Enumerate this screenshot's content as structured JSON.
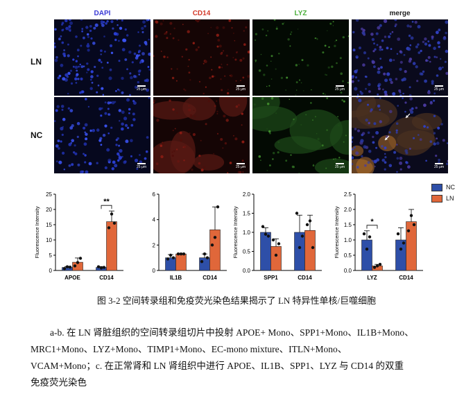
{
  "figure": {
    "channels": [
      "DAPI",
      "CD14",
      "LYZ",
      "merge"
    ],
    "channel_colors": [
      "#3b3bd6",
      "#d43a2a",
      "#4caf3c",
      "#222222"
    ],
    "rows": [
      "LN",
      "NC"
    ],
    "scale_bar": "25 μm"
  },
  "legend": {
    "items": [
      {
        "label": "NC",
        "color": "#2e4fa8"
      },
      {
        "label": "LN",
        "color": "#e0673a"
      }
    ]
  },
  "chart_data": [
    {
      "type": "bar",
      "categories": [
        "APOE",
        "CD14"
      ],
      "series": [
        {
          "name": "NC",
          "values": [
            1.0,
            1.0
          ]
        },
        {
          "name": "LN",
          "values": [
            2.7,
            16.0
          ]
        }
      ],
      "error": [
        [
          0.3,
          0.3
        ],
        [
          1.4,
          3.5
        ]
      ],
      "points": [
        [
          [
            0.6,
            1.2,
            1.1
          ],
          [
            1.2,
            0.8,
            1.0
          ]
        ],
        [
          [
            1.5,
            2.6,
            4.0
          ],
          [
            14.0,
            18.5,
            15.5
          ]
        ]
      ],
      "ylabel": "Fluorescence Intensity",
      "ylim": [
        0,
        25
      ],
      "yticks": [
        "0",
        "5",
        "10",
        "15",
        "20",
        "25"
      ],
      "significance": [
        {
          "category": "CD14",
          "text": "**"
        }
      ]
    },
    {
      "type": "bar",
      "categories": [
        "IL1B",
        "CD14"
      ],
      "series": [
        {
          "name": "NC",
          "values": [
            1.0,
            1.0
          ]
        },
        {
          "name": "LN",
          "values": [
            1.3,
            3.2
          ]
        }
      ],
      "error": [
        [
          0.25,
          0.3
        ],
        [
          0.05,
          1.8
        ]
      ],
      "points": [
        [
          [
            0.9,
            1.2,
            1.0
          ],
          [
            0.7,
            1.3,
            1.0
          ]
        ],
        [
          [
            1.3,
            1.3,
            1.3
          ],
          [
            2.0,
            2.6,
            5.0
          ]
        ]
      ],
      "ylabel": "",
      "ylim": [
        0,
        6
      ],
      "yticks": [
        "0",
        "2",
        "4",
        "6"
      ],
      "significance": []
    },
    {
      "type": "bar",
      "categories": [
        "SPP1",
        "CD14"
      ],
      "series": [
        {
          "name": "NC",
          "values": [
            1.0,
            1.0
          ]
        },
        {
          "name": "LN",
          "values": [
            0.63,
            1.05
          ]
        }
      ],
      "error": [
        [
          0.12,
          0.45
        ],
        [
          0.2,
          0.4
        ]
      ],
      "points": [
        [
          [
            1.15,
            0.95,
            0.9
          ],
          [
            1.5,
            0.6,
            0.9
          ]
        ],
        [
          [
            0.8,
            0.4,
            0.7
          ],
          [
            1.2,
            1.3,
            0.6
          ]
        ]
      ],
      "ylabel": "Fluorescence Intensity",
      "ylim": [
        0,
        2.0
      ],
      "yticks": [
        "0.0",
        "0.5",
        "1.0",
        "1.5",
        "2.0"
      ],
      "significance": []
    },
    {
      "type": "bar",
      "categories": [
        "LYZ",
        "CD14"
      ],
      "series": [
        {
          "name": "NC",
          "values": [
            1.0,
            1.0
          ]
        },
        {
          "name": "LN",
          "values": [
            0.15,
            1.6
          ]
        }
      ],
      "error": [
        [
          0.3,
          0.4
        ],
        [
          0.05,
          0.4
        ]
      ],
      "points": [
        [
          [
            1.2,
            0.7,
            1.1
          ],
          [
            1.2,
            0.7,
            0.9
          ]
        ],
        [
          [
            0.1,
            0.15,
            0.2
          ],
          [
            1.3,
            1.8,
            1.5
          ]
        ]
      ],
      "ylabel": "Fluorescence Intensity",
      "ylim": [
        0,
        2.5
      ],
      "yticks": [
        "0.0",
        "0.5",
        "1.0",
        "1.5",
        "2.0",
        "2.5"
      ],
      "significance": [
        {
          "category": "LYZ",
          "text": "*"
        }
      ]
    }
  ],
  "caption": "图 3-2 空间转录组和免疫荧光染色结果揭示了 LN 特异性单核/巨噬细胞",
  "description": {
    "line1": "a-b. 在 LN 肾脏组织的空间转录组切片中投射 APOE+ Mono、SPP1+Mono、IL1B+Mono、",
    "line2": "MRC1+Mono、LYZ+Mono、TIMP1+Mono、EC-mono                       mixture、ITLN+Mono、",
    "line3": "VCAM+Mono；c. 在正常肾和 LN 肾组织中进行 APOE、IL1B、SPP1、LYZ 与 CD14 的双重",
    "line4": "免疫荧光染色"
  }
}
